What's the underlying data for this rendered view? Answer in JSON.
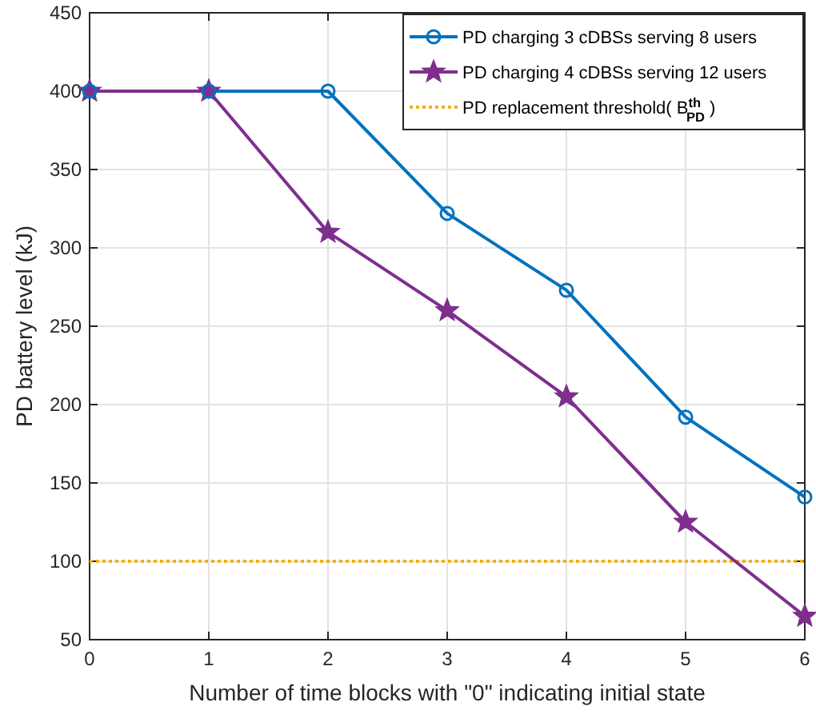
{
  "chart_data": {
    "type": "line",
    "xlabel": "Number of time blocks with \"0\" indicating initial state",
    "ylabel": "PD battery level (kJ)",
    "x": [
      0,
      1,
      2,
      3,
      4,
      5,
      6
    ],
    "xlim": [
      0,
      6
    ],
    "xticks": [
      0,
      1,
      2,
      3,
      4,
      5,
      6
    ],
    "ylim": [
      50,
      450
    ],
    "yticks": [
      50,
      100,
      150,
      200,
      250,
      300,
      350,
      400,
      450
    ],
    "grid": true,
    "legend": "top right",
    "line_style": "solid",
    "series": [
      {
        "name": "PD charging 3 cDBSs serving 8 users",
        "color": "#0072bd",
        "marker": "circle",
        "values": [
          400,
          400,
          400,
          322,
          273,
          192,
          141
        ]
      },
      {
        "name": "PD charging 4 cDBSs serving 12 users",
        "color": "#7e2f8e",
        "marker": "star",
        "values": [
          400,
          400,
          310,
          260,
          205,
          125,
          65
        ]
      }
    ],
    "ref_lines": [
      {
        "axis": "y",
        "value": 100,
        "label": "PD replacement threshold( B$^{th}$$_{PD}$ )",
        "color": "#edb120",
        "line_style": "dotted"
      }
    ]
  }
}
